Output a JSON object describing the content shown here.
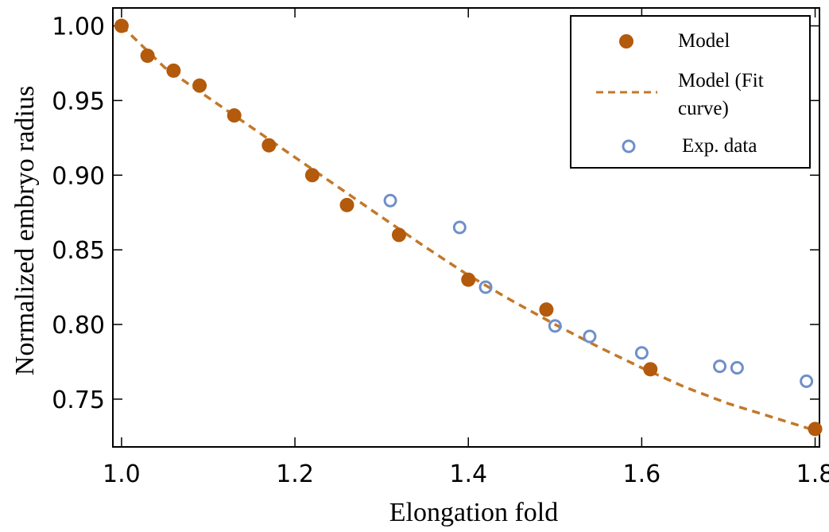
{
  "chart_data": {
    "type": "scatter",
    "xlabel": "Elongation fold",
    "ylabel": "Normalized embryo radius",
    "xlim": [
      0.99,
      1.805
    ],
    "ylim": [
      0.718,
      1.012
    ],
    "xticks": [
      1.0,
      1.2,
      1.4,
      1.6,
      1.8
    ],
    "xtick_labels": [
      "1.0",
      "1.2",
      "1.4",
      "1.6",
      "1.8"
    ],
    "yticks": [
      0.75,
      0.8,
      0.85,
      0.9,
      0.95,
      1.0
    ],
    "ytick_labels": [
      "0.75",
      "0.80",
      "0.85",
      "0.90",
      "0.95",
      "1.00"
    ],
    "grid": false,
    "legend_position": "top-right",
    "series": [
      {
        "name": "Model",
        "style": "filled-circle",
        "color": "#b35a0c",
        "x": [
          1.0,
          1.03,
          1.06,
          1.09,
          1.13,
          1.17,
          1.22,
          1.26,
          1.32,
          1.4,
          1.49,
          1.61,
          1.8
        ],
        "y": [
          1.0,
          0.98,
          0.97,
          0.96,
          0.94,
          0.92,
          0.9,
          0.88,
          0.86,
          0.83,
          0.81,
          0.77,
          0.73
        ]
      },
      {
        "name": "Model (Fit curve)",
        "legend_lines": [
          "Model (Fit",
          "curve)"
        ],
        "style": "dashed-line",
        "color": "#c2782a",
        "x": [
          1.0,
          1.05,
          1.1,
          1.15,
          1.2,
          1.25,
          1.3,
          1.35,
          1.4,
          1.45,
          1.5,
          1.55,
          1.6,
          1.65,
          1.7,
          1.75,
          1.8
        ],
        "y": [
          1.0,
          0.972,
          0.952,
          0.932,
          0.912,
          0.892,
          0.872,
          0.852,
          0.833,
          0.816,
          0.8,
          0.785,
          0.771,
          0.758,
          0.747,
          0.738,
          0.729
        ]
      },
      {
        "name": "Exp. data",
        "style": "open-circle",
        "color": "#6f8fc8",
        "x": [
          1.31,
          1.39,
          1.42,
          1.5,
          1.54,
          1.6,
          1.69,
          1.71,
          1.79
        ],
        "y": [
          0.883,
          0.865,
          0.825,
          0.799,
          0.792,
          0.781,
          0.772,
          0.771,
          0.762
        ]
      }
    ]
  }
}
